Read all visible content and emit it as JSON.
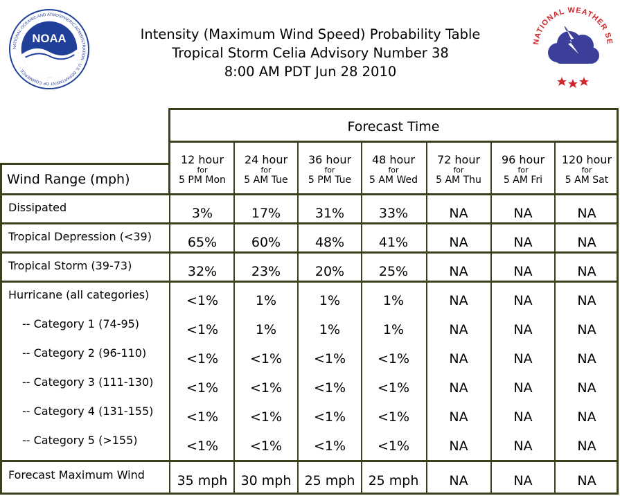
{
  "header": {
    "title_line1": "Intensity (Maximum Wind Speed) Probability Table",
    "title_line2": "Tropical Storm Celia Advisory Number 38",
    "title_line3": "8:00 AM PDT Jun 28 2010"
  },
  "logos": {
    "noaa_text": "NOAA",
    "noaa_ring": "NATIONAL OCEANIC AND ATMOSPHERIC ADMINISTRATION · U.S. DEPARTMENT OF COMMERCE ·",
    "nws_ring": "NATIONAL WEATHER SERVICE",
    "colors": {
      "noaa_blue": "#1f3f99",
      "nws_red": "#d2232a",
      "nws_cloud": "#3b3f99"
    }
  },
  "table": {
    "forecast_time_label": "Forecast Time",
    "wind_range_label": "Wind Range (mph)",
    "columns": [
      {
        "hour": "12 hour",
        "for": "for",
        "when": "5 PM Mon"
      },
      {
        "hour": "24 hour",
        "for": "for",
        "when": "5 AM Tue"
      },
      {
        "hour": "36 hour",
        "for": "for",
        "when": "5 PM Tue"
      },
      {
        "hour": "48 hour",
        "for": "for",
        "when": "5 AM Wed"
      },
      {
        "hour": "72 hour",
        "for": "for",
        "when": "5 AM Thu"
      },
      {
        "hour": "96 hour",
        "for": "for",
        "when": "5 AM Fri"
      },
      {
        "hour": "120 hour",
        "for": "for",
        "when": "5 AM Sat"
      }
    ],
    "rows": [
      {
        "label": "Dissipated",
        "values": [
          "3%",
          "17%",
          "31%",
          "33%",
          "NA",
          "NA",
          "NA"
        ]
      },
      {
        "label": "Tropical Depression (<39)",
        "values": [
          "65%",
          "60%",
          "48%",
          "41%",
          "NA",
          "NA",
          "NA"
        ]
      },
      {
        "label": "Tropical Storm (39-73)",
        "values": [
          "32%",
          "23%",
          "20%",
          "25%",
          "NA",
          "NA",
          "NA"
        ]
      },
      {
        "label": "Hurricane (all categories)",
        "values": [
          "<1%",
          "1%",
          "1%",
          "1%",
          "NA",
          "NA",
          "NA"
        ]
      },
      {
        "label": "-- Category 1 (74-95)",
        "values": [
          "<1%",
          "1%",
          "1%",
          "1%",
          "NA",
          "NA",
          "NA"
        ]
      },
      {
        "label": "-- Category 2 (96-110)",
        "values": [
          "<1%",
          "<1%",
          "<1%",
          "<1%",
          "NA",
          "NA",
          "NA"
        ]
      },
      {
        "label": "-- Category 3 (111-130)",
        "values": [
          "<1%",
          "<1%",
          "<1%",
          "<1%",
          "NA",
          "NA",
          "NA"
        ]
      },
      {
        "label": "-- Category 4 (131-155)",
        "values": [
          "<1%",
          "<1%",
          "<1%",
          "<1%",
          "NA",
          "NA",
          "NA"
        ]
      },
      {
        "label": "-- Category 5 (>155)",
        "values": [
          "<1%",
          "<1%",
          "<1%",
          "<1%",
          "NA",
          "NA",
          "NA"
        ]
      },
      {
        "label": "Forecast Maximum Wind",
        "values": [
          "35 mph",
          "30 mph",
          "25 mph",
          "25 mph",
          "NA",
          "NA",
          "NA"
        ]
      }
    ]
  }
}
